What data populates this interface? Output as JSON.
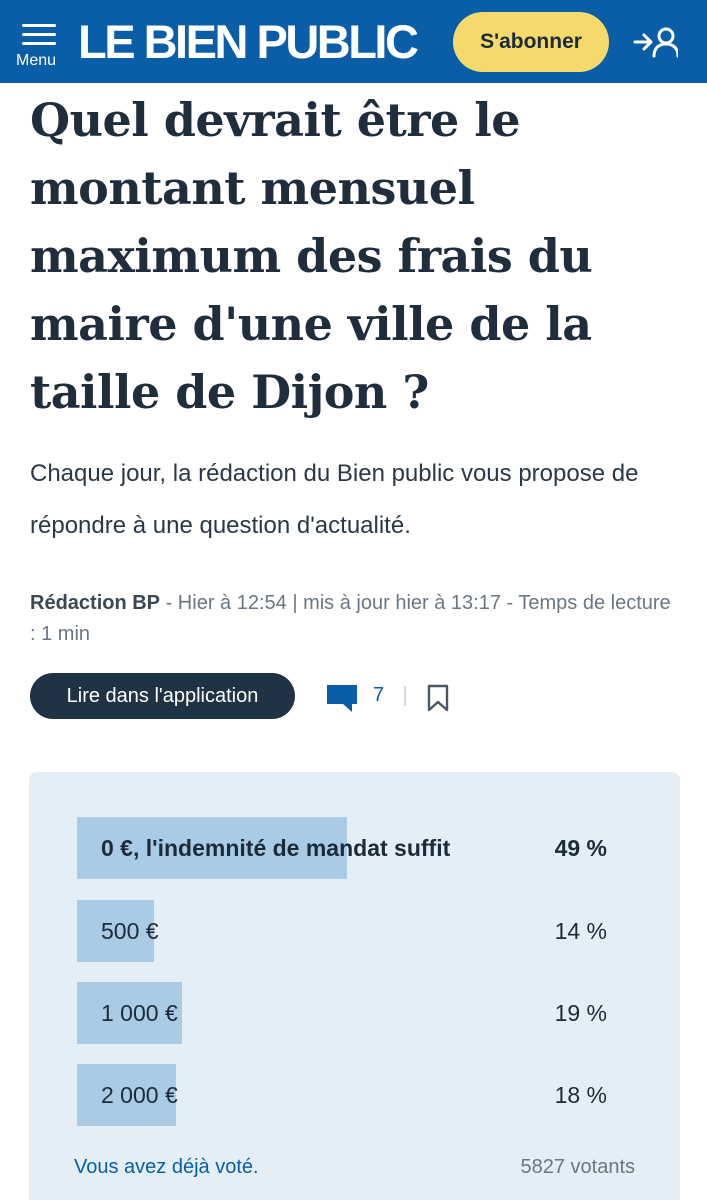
{
  "header": {
    "menu_label": "Menu",
    "logo_text": "LE BIEN PUBLIC",
    "subscribe_label": "S'abonner",
    "login_icon": "login-user-icon",
    "bg_color": "#0a5ea8",
    "subscribe_color": "#f6d96b"
  },
  "article": {
    "title": "Quel devrait être le montant mensuel maximum des frais du maire d'une ville de la taille de Dijon ?",
    "lead": "Chaque jour, la rédaction du Bien public vous propose de répondre à une question d'actualité.",
    "byline": {
      "author": "Rédaction BP",
      "meta": " - Hier à 12:54 | mis à jour hier à 13:17 - Temps de lecture : 1 min"
    },
    "app_button_label": "Lire dans l'application",
    "comment_count": "7"
  },
  "poll": {
    "options": [
      {
        "label": "0 €, l'indemnité de mandat suffit",
        "percent_text": "49 %",
        "percent": 49,
        "winner": true
      },
      {
        "label": "500 €",
        "percent_text": "14 %",
        "percent": 14,
        "winner": false
      },
      {
        "label": "1 000 €",
        "percent_text": "19 %",
        "percent": 19,
        "winner": false
      },
      {
        "label": "2 000 €",
        "percent_text": "18 %",
        "percent": 18,
        "winner": false
      }
    ],
    "voted_text": "Vous avez déjà voté.",
    "voters_text": "5827 votants",
    "bar_color": "#a9cbe5",
    "bg_color": "#e3eef7"
  }
}
